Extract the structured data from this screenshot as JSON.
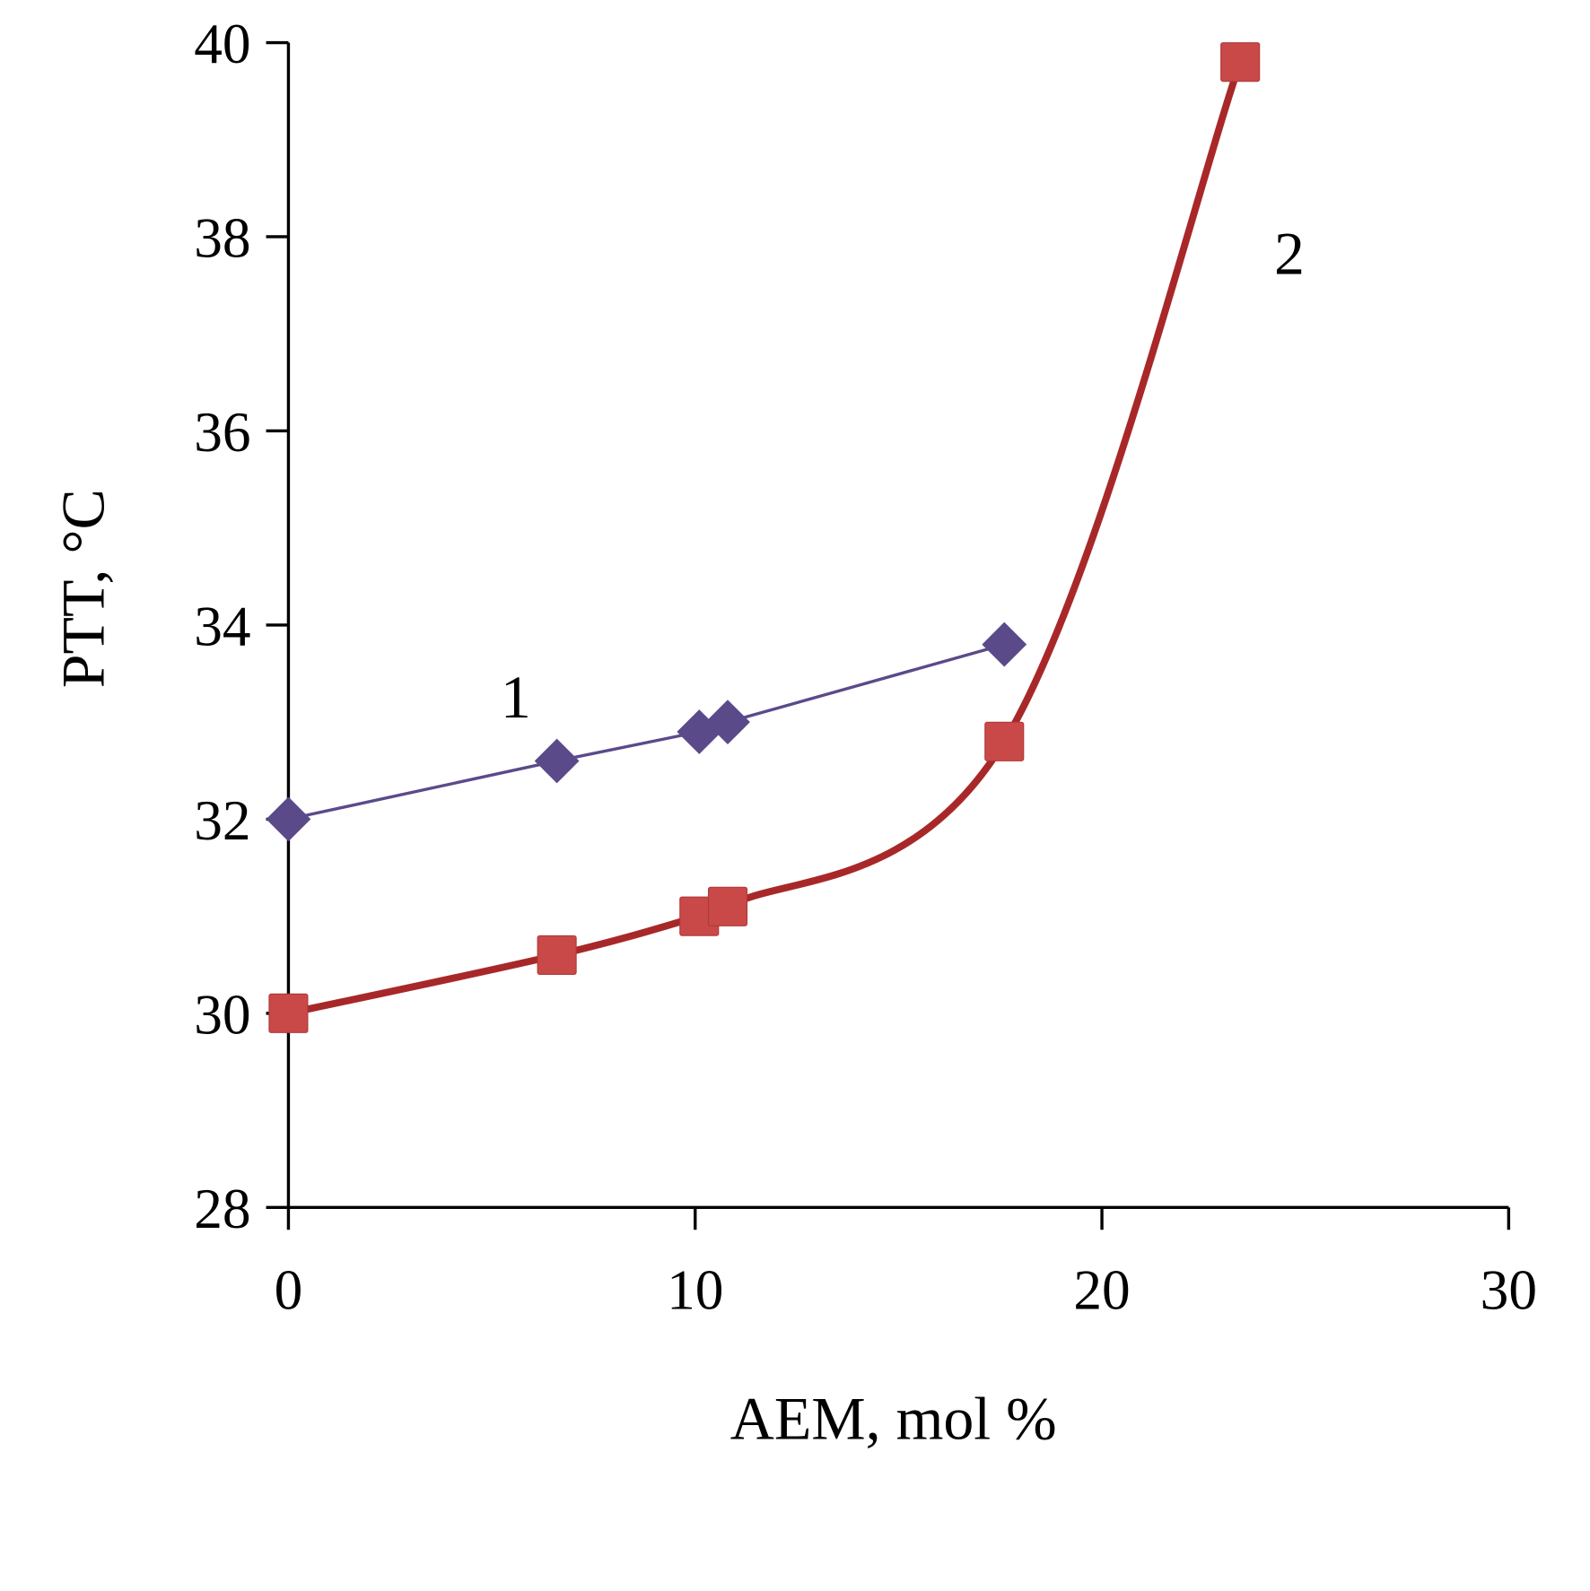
{
  "chart_data": {
    "type": "line",
    "title": "",
    "xlabel": "AEM, mol %",
    "ylabel": "PTT, °C",
    "xlim": [
      0,
      30
    ],
    "ylim": [
      28,
      40
    ],
    "xticks": [
      "0",
      "10",
      "20",
      "30"
    ],
    "yticks": [
      "28",
      "30",
      "32",
      "34",
      "36",
      "38",
      "40"
    ],
    "grid": false,
    "legend": "none",
    "series": [
      {
        "name": "1",
        "label": "1",
        "marker": "diamond",
        "color": "#5b4a8a",
        "smooth": false,
        "x": [
          0,
          6.6,
          10.1,
          10.8,
          17.6
        ],
        "y": [
          32.0,
          32.6,
          32.9,
          33.0,
          33.8
        ]
      },
      {
        "name": "2",
        "label": "2",
        "marker": "square",
        "color": "#a8282a",
        "marker_color": "#c94848",
        "smooth": true,
        "x": [
          0,
          6.6,
          10.1,
          10.8,
          17.6,
          23.4
        ],
        "y": [
          30.0,
          30.6,
          31.0,
          31.1,
          32.8,
          39.8
        ]
      }
    ]
  }
}
